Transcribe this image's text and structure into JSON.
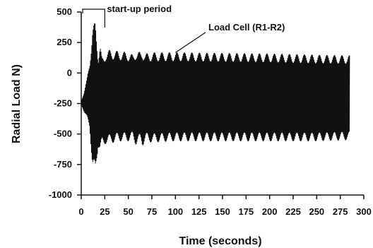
{
  "chart_data": {
    "type": "line",
    "title": "",
    "xlabel": "Time (seconds)",
    "ylabel": "Radial Load N)",
    "xlim": [
      0,
      300
    ],
    "ylim": [
      -1000,
      500
    ],
    "xticks": [
      0,
      25,
      50,
      75,
      100,
      125,
      150,
      175,
      200,
      225,
      250,
      275,
      300
    ],
    "yticks": [
      500,
      250,
      0,
      -250,
      -500,
      -750,
      -1000
    ],
    "grid": false,
    "legend": "none",
    "series": [
      {
        "name": "Load Cell (R1-R2)",
        "color": "#111111",
        "envelope": {
          "t": [
            0,
            3,
            6,
            9,
            12,
            15,
            18,
            20,
            22,
            24,
            26,
            30,
            40,
            50,
            55,
            58,
            60,
            63,
            65,
            68,
            75,
            100,
            150,
            200,
            250,
            285
          ],
          "upper": [
            -230,
            -150,
            -50,
            100,
            380,
            420,
            150,
            250,
            120,
            140,
            180,
            190,
            180,
            170,
            150,
            190,
            180,
            170,
            190,
            160,
            170,
            170,
            165,
            160,
            150,
            145
          ],
          "lower": [
            -260,
            -320,
            -380,
            -450,
            -800,
            -850,
            -600,
            -650,
            -600,
            -600,
            -580,
            -580,
            -560,
            -560,
            -550,
            -590,
            -580,
            -570,
            -600,
            -560,
            -570,
            -560,
            -560,
            -560,
            -560,
            -550
          ]
        }
      }
    ],
    "annotations": [
      {
        "text": "start-up period",
        "t_range": [
          0,
          25
        ]
      },
      {
        "text": "Load Cell (R1-R2)",
        "points_to": {
          "t": 100,
          "y": 150
        }
      }
    ]
  }
}
